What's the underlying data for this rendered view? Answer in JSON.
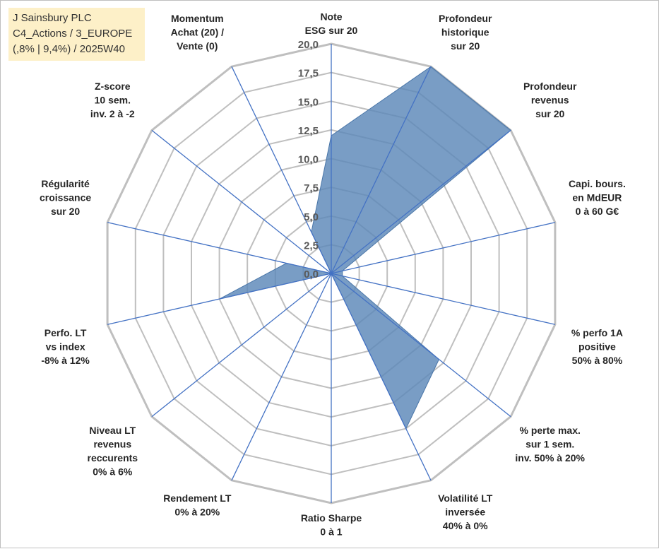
{
  "title_box": {
    "line1": "J Sainsbury PLC",
    "line2": "C4_Actions / 3_EUROPE",
    "line3": "(,8% | 9,4%) / 2025W40"
  },
  "colors": {
    "series_fill": "#5b87b8",
    "series_stroke": "#4a76a8",
    "grid": "#bfbfbf",
    "spoke": "#4472c4",
    "title_box_bg": "#fdf0c8"
  },
  "chart_data": {
    "type": "radar",
    "title": "",
    "rmin": 0,
    "rmax": 20,
    "grid_ticks": [
      "0,0",
      "2,5",
      "5,0",
      "7,5",
      "10,0",
      "12,5",
      "15,0",
      "17,5",
      "20,0"
    ],
    "grid_values": [
      0,
      2.5,
      5,
      7.5,
      10,
      12.5,
      15,
      17.5,
      20
    ],
    "categories": [
      [
        "Note",
        "ESG sur 20"
      ],
      [
        "Profondeur",
        "historique",
        "sur 20"
      ],
      [
        "Profondeur",
        "revenus",
        "sur 20"
      ],
      [
        "Capi. bours.",
        "en MdEUR",
        "0 à 60 G€"
      ],
      [
        "% perfo 1A",
        "positive",
        "50% à 80%"
      ],
      [
        "% perte max.",
        "sur 1 sem.",
        "inv. 50% à 20%"
      ],
      [
        "Volatilité LT",
        "inversée",
        "40% à 0%"
      ],
      [
        "Ratio Sharpe",
        "0 à 1"
      ],
      [
        "Rendement LT",
        "0% à 20%"
      ],
      [
        "Niveau LT",
        "revenus",
        "reccurents",
        "0% à 6%"
      ],
      [
        "Perfo. LT",
        "vs index",
        "-8% à 12%"
      ],
      [
        "Régularité",
        "croissance",
        "sur 20"
      ],
      [
        "Z-score",
        "10 sem.",
        "inv. 2 à -2"
      ],
      [
        "Momentum",
        "Achat (20) /",
        "Vente (0)"
      ]
    ],
    "series": [
      {
        "values": [
          12,
          20,
          20,
          1,
          1,
          12,
          15,
          0,
          0,
          0,
          10,
          4,
          0,
          4
        ]
      }
    ]
  }
}
